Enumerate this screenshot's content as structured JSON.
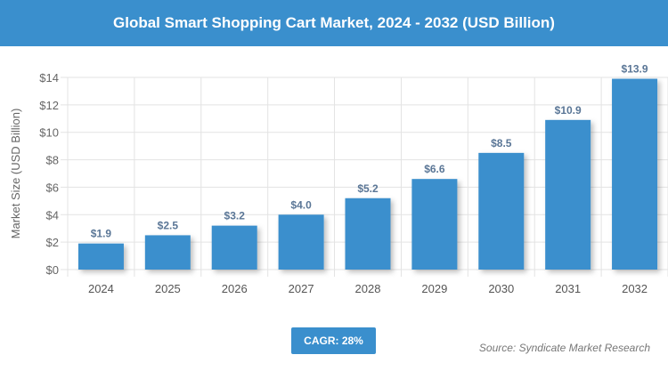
{
  "title": "Global Smart Shopping Cart Market, 2024 - 2032 (USD Billion)",
  "cagr": "CAGR: 28%",
  "source": "Source: Syndicate Market Research",
  "colors": {
    "bar": "#3a8fcd",
    "header": "#3a8fcd",
    "label": "#5a7696"
  },
  "chart_data": {
    "type": "bar",
    "title": "Global Smart Shopping Cart Market, 2024 - 2032 (USD Billion)",
    "xlabel": "",
    "ylabel": "Market Size (USD Billion)",
    "categories": [
      "2024",
      "2025",
      "2026",
      "2027",
      "2028",
      "2029",
      "2030",
      "2031",
      "2032"
    ],
    "values": [
      1.9,
      2.5,
      3.2,
      4.0,
      5.2,
      6.6,
      8.5,
      10.9,
      13.9
    ],
    "data_labels": [
      "$1.9",
      "$2.5",
      "$3.2",
      "$4.0",
      "$5.2",
      "$6.6",
      "$8.5",
      "$10.9",
      "$13.9"
    ],
    "yticks": [
      "$0",
      "$2",
      "$4",
      "$6",
      "$8",
      "$10",
      "$12",
      "$14"
    ],
    "ylim": [
      0,
      14
    ],
    "grid": true
  }
}
